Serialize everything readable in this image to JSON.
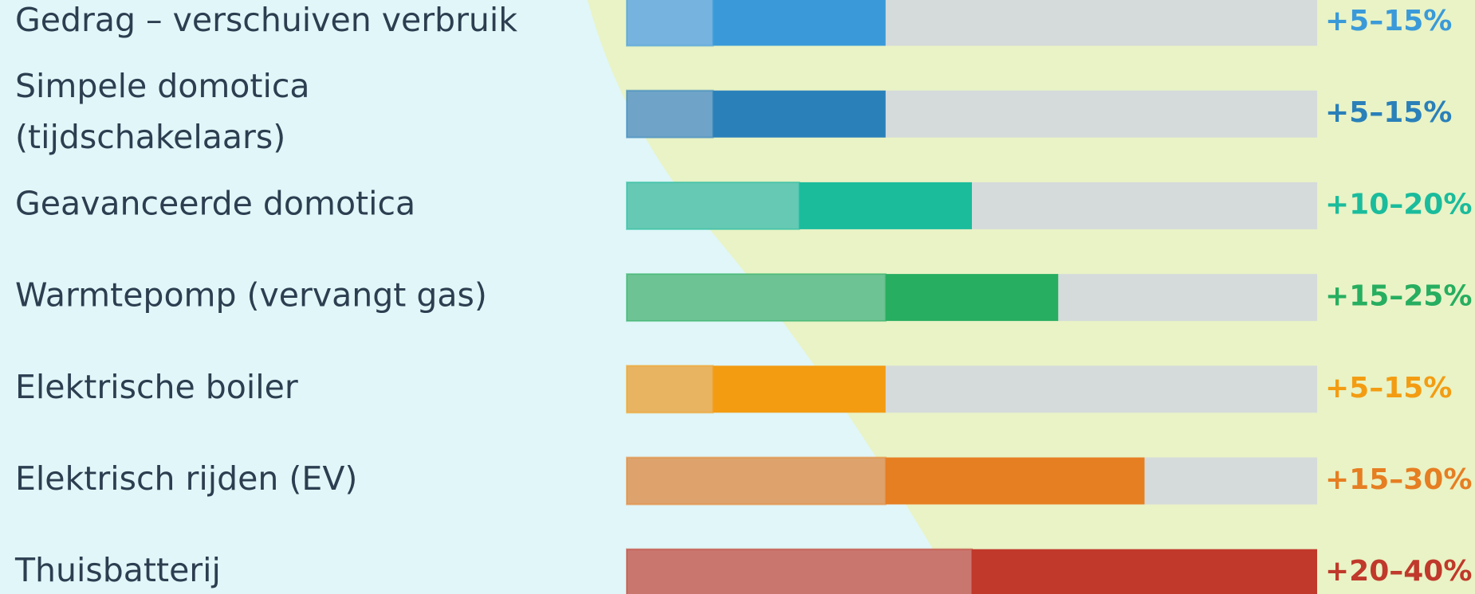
{
  "chart_data": {
    "type": "range_bar",
    "categories": [
      [
        "Gedrag – verschuiven verbruik"
      ],
      [
        "Simpele domotica",
        "(tijdschakelaars)"
      ],
      [
        "Geavanceerde domotica"
      ],
      [
        "Warmtepomp (vervangt gas)"
      ],
      [
        "Elektrische boiler"
      ],
      [
        "Elektrisch rijden (EV)"
      ],
      [
        "Thuisbatterij"
      ]
    ],
    "low": [
      5,
      5,
      10,
      15,
      5,
      15,
      20
    ],
    "high": [
      15,
      15,
      20,
      25,
      15,
      30,
      40
    ],
    "value_labels": [
      "+5–15%",
      "+5–15%",
      "+10–20%",
      "+15–25%",
      "+5–15%",
      "+15–30%",
      "+20–40%"
    ],
    "colors": [
      "#3a9ad9",
      "#2a80b9",
      "#1abc9c",
      "#27ae60",
      "#f39c12",
      "#e67e22",
      "#c0392b"
    ],
    "light_colors": [
      "#76b3df",
      "#6fa4c8",
      "#66c9b4",
      "#6dc393",
      "#e8b462",
      "#dea36c",
      "#c9766e"
    ],
    "track_color": "#d5dbdb",
    "xlim": [
      0,
      40
    ]
  }
}
